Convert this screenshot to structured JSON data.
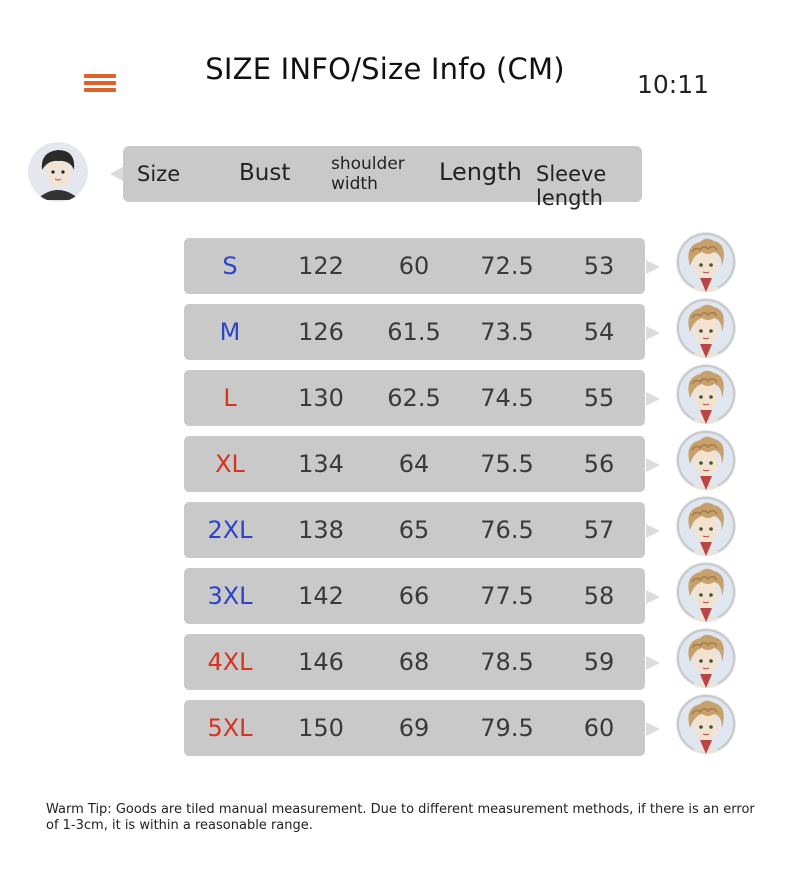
{
  "title": "SIZE INFO/Size Info (CM)",
  "clock": "10:11",
  "colors": {
    "menu": "#e0602e",
    "blue": "#2b44c9",
    "red": "#d63320",
    "bubble": "#c9c9c9"
  },
  "header": {
    "size": "Size",
    "bust": "Bust",
    "shoulder": "shoulder width",
    "length": "Length",
    "sleeve": "Sleeve length"
  },
  "rows": [
    {
      "size": "S",
      "size_color": "#2b44c9",
      "bust": "122",
      "shoulder": "60",
      "length": "72.5",
      "sleeve": "53"
    },
    {
      "size": "M",
      "size_color": "#2b44c9",
      "bust": "126",
      "shoulder": "61.5",
      "length": "73.5",
      "sleeve": "54"
    },
    {
      "size": "L",
      "size_color": "#d63320",
      "bust": "130",
      "shoulder": "62.5",
      "length": "74.5",
      "sleeve": "55"
    },
    {
      "size": "XL",
      "size_color": "#d63320",
      "bust": "134",
      "shoulder": "64",
      "length": "75.5",
      "sleeve": "56"
    },
    {
      "size": "2XL",
      "size_color": "#2b44c9",
      "bust": "138",
      "shoulder": "65",
      "length": "76.5",
      "sleeve": "57"
    },
    {
      "size": "3XL",
      "size_color": "#2b44c9",
      "bust": "142",
      "shoulder": "66",
      "length": "77.5",
      "sleeve": "58"
    },
    {
      "size": "4XL",
      "size_color": "#d63320",
      "bust": "146",
      "shoulder": "68",
      "length": "78.5",
      "sleeve": "59"
    },
    {
      "size": "5XL",
      "size_color": "#d63320",
      "bust": "150",
      "shoulder": "69",
      "length": "79.5",
      "sleeve": "60"
    }
  ],
  "tip": "Warm Tip: Goods are tiled manual measurement. Due to different measurement methods, if there is an error of 1-3cm, it is within a reasonable range.",
  "icons": {
    "menu": "menu-icon",
    "left_avatar": "avatar",
    "right_avatar": "avatar"
  }
}
